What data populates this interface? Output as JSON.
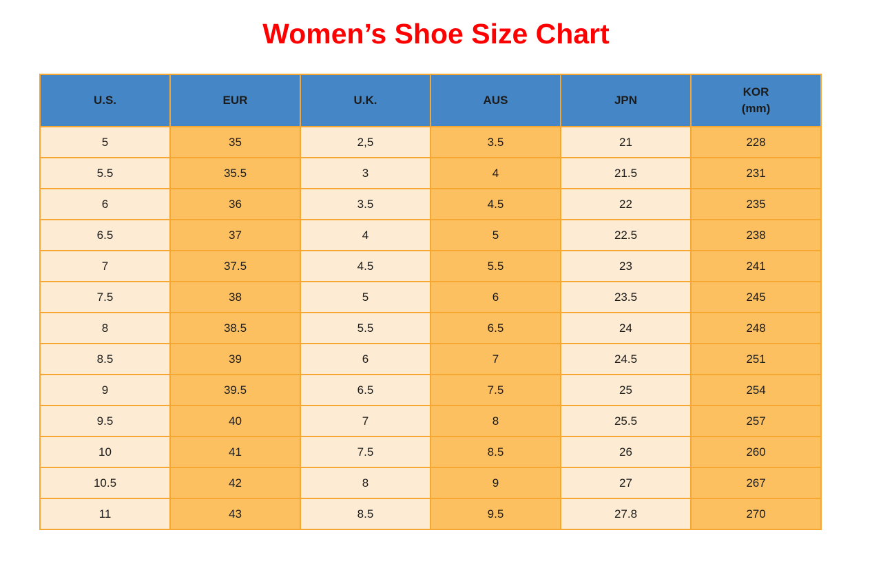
{
  "title": {
    "text": "Women’s Shoe Size Chart"
  },
  "colors": {
    "title_red": "#ff0000",
    "header_blue": "#4587c6",
    "cell_cream": "#fdecd3",
    "cell_orange": "#fcc061",
    "grid_orange": "#f5a731",
    "text_black": "#1b1b1b"
  },
  "table": {
    "header": [
      {
        "line1": "U.S.",
        "line2": ""
      },
      {
        "line1": "EUR",
        "line2": ""
      },
      {
        "line1": "U.K.",
        "line2": ""
      },
      {
        "line1": "AUS",
        "line2": ""
      },
      {
        "line1": "JPN",
        "line2": ""
      },
      {
        "line1": "KOR",
        "line2": "(mm)"
      }
    ]
  },
  "chart_data": {
    "type": "table",
    "title": "Women’s Shoe Size Chart",
    "columns": [
      "U.S.",
      "EUR",
      "U.K.",
      "AUS",
      "JPN",
      "KOR (mm)"
    ],
    "rows": [
      [
        "5",
        "35",
        "2,5",
        "3.5",
        "21",
        "228"
      ],
      [
        "5.5",
        "35.5",
        "3",
        "4",
        "21.5",
        "231"
      ],
      [
        "6",
        "36",
        "3.5",
        "4.5",
        "22",
        "235"
      ],
      [
        "6.5",
        "37",
        "4",
        "5",
        "22.5",
        "238"
      ],
      [
        "7",
        "37.5",
        "4.5",
        "5.5",
        "23",
        "241"
      ],
      [
        "7.5",
        "38",
        "5",
        "6",
        "23.5",
        "245"
      ],
      [
        "8",
        "38.5",
        "5.5",
        "6.5",
        "24",
        "248"
      ],
      [
        "8.5",
        "39",
        "6",
        "7",
        "24.5",
        "251"
      ],
      [
        "9",
        "39.5",
        "6.5",
        "7.5",
        "25",
        "254"
      ],
      [
        "9.5",
        "40",
        "7",
        "8",
        "25.5",
        "257"
      ],
      [
        "10",
        "41",
        "7.5",
        "8.5",
        "26",
        "260"
      ],
      [
        "10.5",
        "42",
        "8",
        "9",
        "27",
        "267"
      ],
      [
        "11",
        "43",
        "8.5",
        "9.5",
        "27.8",
        "270"
      ]
    ],
    "column_fill_pattern": [
      "cream",
      "orange",
      "cream",
      "orange",
      "cream",
      "orange"
    ]
  }
}
